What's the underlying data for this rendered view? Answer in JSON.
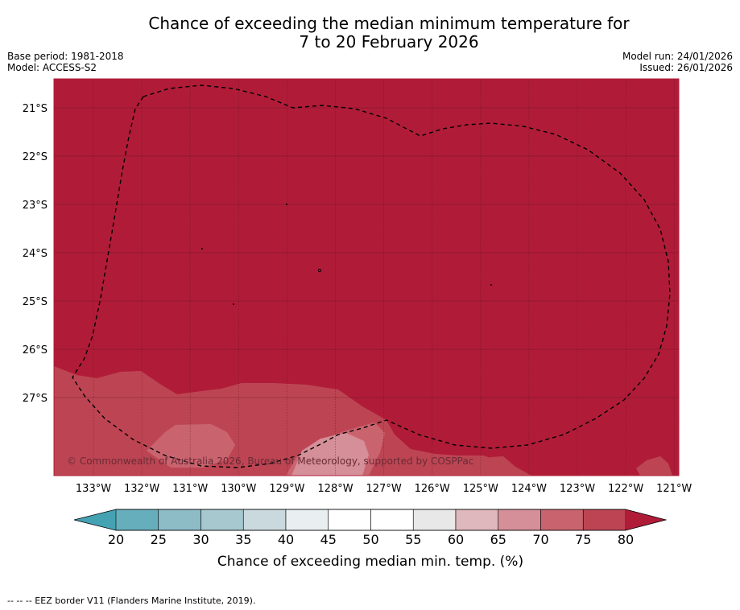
{
  "title": {
    "line1": "Chance of exceeding the median minimum temperature for",
    "line2": "7 to 20 February 2026"
  },
  "meta": {
    "base_period": "Base period: 1981-2018",
    "model": "Model: ACCESS-S2",
    "model_run": "Model run: 24/01/2026",
    "issued": "Issued: 26/01/2026"
  },
  "map": {
    "lat_labels": [
      "21°S",
      "22°S",
      "23°S",
      "24°S",
      "25°S",
      "26°S",
      "27°S"
    ],
    "lon_labels": [
      "133°W",
      "132°W",
      "131°W",
      "130°W",
      "129°W",
      "128°W",
      "127°W",
      "126°W",
      "125°W",
      "124°W",
      "123°W",
      "122°W",
      "121°W"
    ],
    "copyright": "© Commonwealth of Australia 2026, Bureau of Meteorology, supported by COSPPac"
  },
  "colorbar": {
    "ticks": [
      "20",
      "25",
      "30",
      "35",
      "40",
      "45",
      "50",
      "55",
      "60",
      "65",
      "70",
      "75",
      "80"
    ],
    "colors": [
      "#67aebd",
      "#8dbcc7",
      "#a8c8cf",
      "#c9d9dd",
      "#e9eff1",
      "#ffffff",
      "#ffffff",
      "#e8e8e8",
      "#deb8bd",
      "#d48f98",
      "#c9646f",
      "#bd4553"
    ],
    "low_color": "#44a2b3",
    "high_color": "#b01c38",
    "label": "Chance of exceeding median min. temp. (%)"
  },
  "footer": {
    "note": "--  --  -- EEZ border V11 (Flanders Marine Institute, 2019)."
  }
}
